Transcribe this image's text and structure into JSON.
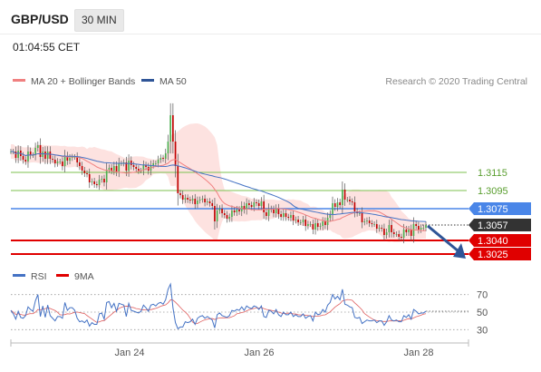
{
  "header": {
    "symbol": "GBP/USD",
    "timeframe": "30 MIN",
    "time": "01:04:55 CET"
  },
  "legend_top": [
    {
      "label": "MA 20 + Bollinger Bands",
      "color": "#f08080"
    },
    {
      "label": "MA 50",
      "color": "#2f5597"
    }
  ],
  "copyright": "Research © 2020 Trading Central",
  "legend_rsi": [
    {
      "label": "RSI",
      "color": "#4472c4"
    },
    {
      "label": "9MA",
      "color": "#e00000"
    }
  ],
  "colors": {
    "up": "#4caf50",
    "down": "#c00000",
    "band": "#fde2e0",
    "ma20": "#f08080",
    "ma50": "#4472c4",
    "green_level": "#7cc24f",
    "blue_level": "#4a86e8",
    "red_level": "#e00000",
    "arrow": "#2f5597"
  },
  "chart_data": {
    "type": "candlestick",
    "x_ticks": [
      "Jan 24",
      "Jan 26",
      "Jan 28"
    ],
    "ylim": [
      1.3015,
      1.3205
    ],
    "levels": [
      {
        "value": 1.3115,
        "label": "1.3115",
        "kind": "green"
      },
      {
        "value": 1.3095,
        "label": "1.3095",
        "kind": "green"
      },
      {
        "value": 1.3075,
        "label": "1.3075",
        "kind": "blue"
      },
      {
        "value": 1.3057,
        "label": "1.3057",
        "kind": "current"
      },
      {
        "value": 1.304,
        "label": "1.3040",
        "kind": "red"
      },
      {
        "value": 1.3025,
        "label": "1.3025",
        "kind": "red"
      }
    ],
    "close_series": [
      1.3138,
      1.3138,
      1.3131,
      1.3139,
      1.3133,
      1.3129,
      1.3127,
      1.3138,
      1.3134,
      1.3134,
      1.3142,
      1.3145,
      1.3132,
      1.3138,
      1.313,
      1.3138,
      1.313,
      1.3129,
      1.3125,
      1.3127,
      1.3127,
      1.3122,
      1.3133,
      1.3128,
      1.3131,
      1.3132,
      1.3132,
      1.3126,
      1.3122,
      1.3117,
      1.3114,
      1.3113,
      1.3104,
      1.3105,
      1.3102,
      1.3101,
      1.3107,
      1.3108,
      1.3104,
      1.3118,
      1.312,
      1.3117,
      1.3122,
      1.3116,
      1.3125,
      1.3125,
      1.3126,
      1.3117,
      1.3128,
      1.3123,
      1.3121,
      1.3119,
      1.3117,
      1.3117,
      1.3123,
      1.3121,
      1.3117,
      1.3123,
      1.3125,
      1.3125,
      1.3129,
      1.3131,
      1.313,
      1.3136,
      1.3149,
      1.3178,
      1.3149,
      1.3122,
      1.3092,
      1.309,
      1.3085,
      1.3087,
      1.3085,
      1.3084,
      1.3086,
      1.308,
      1.3084,
      1.3085,
      1.3086,
      1.3082,
      1.3083,
      1.3081,
      1.3078,
      1.3061,
      1.3073,
      1.3075,
      1.307,
      1.3068,
      1.3064,
      1.3066,
      1.3073,
      1.3071,
      1.3074,
      1.3072,
      1.3078,
      1.3074,
      1.3081,
      1.3079,
      1.3077,
      1.3082,
      1.3081,
      1.3078,
      1.3083,
      1.3071,
      1.3067,
      1.3075,
      1.3074,
      1.307,
      1.3075,
      1.3069,
      1.3066,
      1.307,
      1.3066,
      1.3065,
      1.3068,
      1.3062,
      1.3063,
      1.306,
      1.306,
      1.3063,
      1.3056,
      1.3058,
      1.3058,
      1.3052,
      1.3059,
      1.3055,
      1.3056,
      1.3061,
      1.3057,
      1.3065,
      1.3069,
      1.3081,
      1.3077,
      1.3082,
      1.3079,
      1.3096,
      1.3085,
      1.3085,
      1.3083,
      1.3082,
      1.3072,
      1.307,
      1.307,
      1.306,
      1.3061,
      1.3062,
      1.3059,
      1.3058,
      1.3058,
      1.3053,
      1.3054,
      1.3053,
      1.3046,
      1.3049,
      1.3057,
      1.3049,
      1.3047,
      1.3047,
      1.3044,
      1.3043,
      1.3052,
      1.3049,
      1.3052,
      1.3045,
      1.3058,
      1.3056,
      1.3052,
      1.3054,
      1.3054,
      1.3057
    ],
    "rsi_axis": [
      70,
      50,
      30
    ],
    "rsi_ylim": [
      20,
      80
    ],
    "rsi_series": [
      52,
      48,
      42,
      51,
      44,
      43,
      46,
      56,
      53,
      51,
      63,
      70,
      45,
      57,
      44,
      58,
      46,
      43,
      40,
      45,
      45,
      43,
      61,
      52,
      55,
      55,
      52,
      43,
      39,
      40,
      38,
      41,
      34,
      38,
      36,
      36,
      48,
      49,
      42,
      61,
      62,
      55,
      60,
      51,
      60,
      59,
      58,
      45,
      60,
      52,
      51,
      50,
      49,
      51,
      58,
      55,
      51,
      58,
      59,
      57,
      60,
      61,
      59,
      64,
      76,
      82,
      55,
      38,
      31,
      33,
      33,
      39,
      38,
      39,
      42,
      36,
      43,
      45,
      46,
      43,
      45,
      43,
      41,
      32,
      47,
      49,
      46,
      45,
      44,
      46,
      52,
      51,
      53,
      52,
      56,
      52,
      57,
      55,
      54,
      57,
      56,
      53,
      57,
      45,
      44,
      52,
      51,
      48,
      53,
      47,
      45,
      50,
      47,
      47,
      50,
      45,
      47,
      45,
      45,
      48,
      43,
      45,
      46,
      40,
      50,
      47,
      48,
      53,
      50,
      58,
      61,
      70,
      65,
      68,
      64,
      76,
      59,
      58,
      56,
      55,
      44,
      43,
      44,
      37,
      39,
      41,
      40,
      40,
      41,
      38,
      40,
      40,
      35,
      39,
      46,
      41,
      40,
      41,
      39,
      39,
      46,
      44,
      47,
      42,
      53,
      51,
      48,
      49,
      49,
      51
    ]
  }
}
